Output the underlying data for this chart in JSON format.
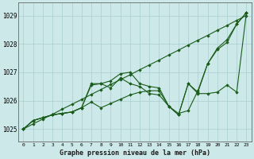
{
  "title": "Graphe pression niveau de la mer (hPa)",
  "bg_color": "#cce8e8",
  "grid_color": "#aacece",
  "line_color": "#1a5c1a",
  "marker_color": "#1a5c1a",
  "xlim": [
    -0.5,
    23.5
  ],
  "ylim": [
    1024.55,
    1029.45
  ],
  "yticks": [
    1025,
    1026,
    1027,
    1028,
    1029
  ],
  "xticks": [
    0,
    1,
    2,
    3,
    4,
    5,
    6,
    7,
    8,
    9,
    10,
    11,
    12,
    13,
    14,
    15,
    16,
    17,
    18,
    19,
    20,
    21,
    22,
    23
  ],
  "series": [
    [
      1025.0,
      1025.3,
      1025.4,
      1025.5,
      1025.55,
      1025.6,
      1025.75,
      1026.55,
      1026.6,
      1026.7,
      1026.95,
      1027.0,
      1026.6,
      1026.5,
      1026.45,
      1025.8,
      1025.55,
      1025.65,
      1026.35,
      1027.3,
      1027.85,
      1028.15,
      1028.7,
      1029.1
    ],
    [
      1025.0,
      1025.3,
      1025.4,
      1025.5,
      1025.55,
      1025.6,
      1025.75,
      1026.6,
      1026.6,
      1026.45,
      1026.8,
      1026.6,
      1026.5,
      1026.25,
      1026.2,
      1025.8,
      1025.5,
      1026.6,
      1026.3,
      1027.3,
      1027.8,
      1028.05,
      1028.7,
      1029.1
    ],
    [
      1025.0,
      1025.3,
      1025.4,
      1025.5,
      1025.55,
      1025.6,
      1025.75,
      1025.95,
      1025.75,
      1025.9,
      1026.05,
      1026.2,
      1026.3,
      1026.35,
      1026.35,
      1025.8,
      1025.5,
      1026.6,
      1026.25,
      1026.25,
      1026.3,
      1026.55,
      1026.3,
      1029.1
    ],
    [
      1025.0,
      1025.18,
      1025.35,
      1025.52,
      1025.7,
      1025.87,
      1026.04,
      1026.22,
      1026.39,
      1026.57,
      1026.74,
      1026.91,
      1027.09,
      1027.26,
      1027.43,
      1027.61,
      1027.78,
      1027.96,
      1028.13,
      1028.3,
      1028.48,
      1028.65,
      1028.83,
      1029.0
    ]
  ]
}
